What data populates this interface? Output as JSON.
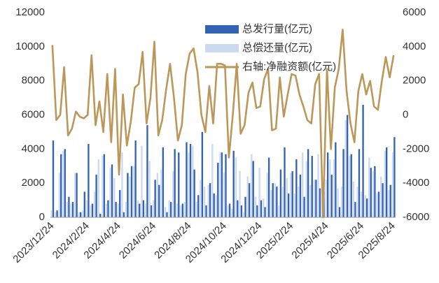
{
  "chart_data": {
    "type": "bar-line",
    "categories": [
      "2023/12/24",
      null,
      null,
      null,
      null,
      null,
      null,
      null,
      null,
      "2024/2/24",
      null,
      null,
      null,
      null,
      null,
      null,
      null,
      "2024/4/24",
      null,
      null,
      null,
      null,
      null,
      null,
      null,
      null,
      "2024/6/24",
      null,
      null,
      null,
      null,
      null,
      null,
      null,
      null,
      "2024/8/24",
      null,
      null,
      null,
      null,
      null,
      null,
      null,
      null,
      "2024/10/24",
      null,
      null,
      null,
      null,
      null,
      null,
      null,
      null,
      "2024/12/24",
      null,
      null,
      null,
      null,
      null,
      null,
      null,
      "2025/2/24",
      null,
      null,
      null,
      null,
      null,
      null,
      null,
      null,
      "2025/4/24",
      null,
      null,
      null,
      null,
      null,
      null,
      null,
      null,
      "2025/6/24",
      null,
      null,
      null,
      null,
      null,
      null,
      null,
      "2025/8/24"
    ],
    "series": [
      {
        "name": "总发行量(亿元)",
        "color": "#3563b3",
        "kind": "bar",
        "values": [
          4500,
          400,
          3700,
          4000,
          1200,
          900,
          2600,
          300,
          1500,
          4300,
          800,
          2500,
          200,
          3700,
          1000,
          3100,
          900,
          1600,
          300,
          2600,
          3000,
          4500,
          800,
          1000,
          5400,
          700,
          2200,
          1900,
          4100,
          300,
          900,
          4000,
          3800,
          800,
          4400,
          4300,
          2800,
          1300,
          5000,
          700,
          2000,
          1400,
          3200,
          3800,
          3700,
          800,
          3900,
          1000,
          700,
          1200,
          2000,
          3300,
          700,
          1000,
          600,
          3500,
          2000,
          1800,
          2800,
          4100,
          1400,
          2700,
          3400,
          2500,
          1200,
          4000,
          3600,
          2200,
          1700,
          1500,
          3800,
          2500,
          4400,
          600,
          4000,
          6000,
          3700,
          900,
          4000,
          6600,
          1100,
          2900,
          3000,
          1500,
          2000,
          4100,
          1900,
          4700
        ]
      },
      {
        "name": "总偿还量(亿元)",
        "color": "#ccdaf1",
        "kind": "bar",
        "values": [
          400,
          300,
          2600,
          3900,
          900,
          800,
          2600,
          300,
          400,
          1000,
          700,
          1500,
          3400,
          3600,
          800,
          2900,
          2300,
          800,
          3800,
          900,
          2400,
          3000,
          1000,
          4200,
          800,
          3300,
          1000,
          2600,
          2800,
          600,
          1000,
          2700,
          800,
          700,
          900,
          3800,
          4200,
          900,
          2200,
          1800,
          1900,
          4300,
          1300,
          3800,
          2600,
          700,
          500,
          3500,
          2700,
          300,
          2400,
          3700,
          1200,
          2900,
          1100,
          2600,
          1600,
          2000,
          700,
          1800,
          2300,
          2600,
          1400,
          1800,
          3800,
          3300,
          1900,
          2200,
          3700,
          1100,
          2200,
          3400,
          3400,
          1700,
          1800,
          5700,
          3600,
          2100,
          1800,
          1500,
          1300,
          3500,
          2700,
          1400,
          2400,
          3900,
          1600,
          3800
        ]
      },
      {
        "name": "右轴:净融资额(亿元)",
        "color": "#bc975a",
        "kind": "line",
        "axis": "y2",
        "values": [
          4100,
          -300,
          0,
          2800,
          -1200,
          -800,
          200,
          -100,
          -200,
          0,
          3500,
          -600,
          800,
          -1000,
          2400,
          -1600,
          2700,
          -3500,
          1200,
          -1800,
          -400,
          1600,
          1800,
          3700,
          -500,
          1000,
          4300,
          -1200,
          -300,
          1500,
          3000,
          1000,
          -1500,
          -600,
          2400,
          3600,
          3900,
          2500,
          0,
          -1000,
          1700,
          -500,
          3000,
          3000,
          2900,
          -2500,
          0,
          3000,
          -1100,
          -600,
          1300,
          1900,
          400,
          500,
          2100,
          2700,
          -900,
          -800,
          2200,
          -100,
          1200,
          2400,
          2300,
          1200,
          500,
          -300,
          -500,
          1800,
          2400,
          -6000,
          2700,
          -2000,
          1600,
          2700,
          5000,
          1400,
          -500,
          -1600,
          1400,
          2400,
          1200,
          2000,
          500,
          300,
          2000,
          3400,
          2200,
          3500
        ]
      }
    ],
    "ylim": [
      0,
      12000
    ],
    "yticks": [
      0,
      2000,
      4000,
      6000,
      8000,
      10000,
      12000
    ],
    "y2lim": [
      -6000,
      6000
    ],
    "y2ticks": [
      -6000,
      -4000,
      -2000,
      0,
      2000,
      4000,
      6000
    ]
  }
}
